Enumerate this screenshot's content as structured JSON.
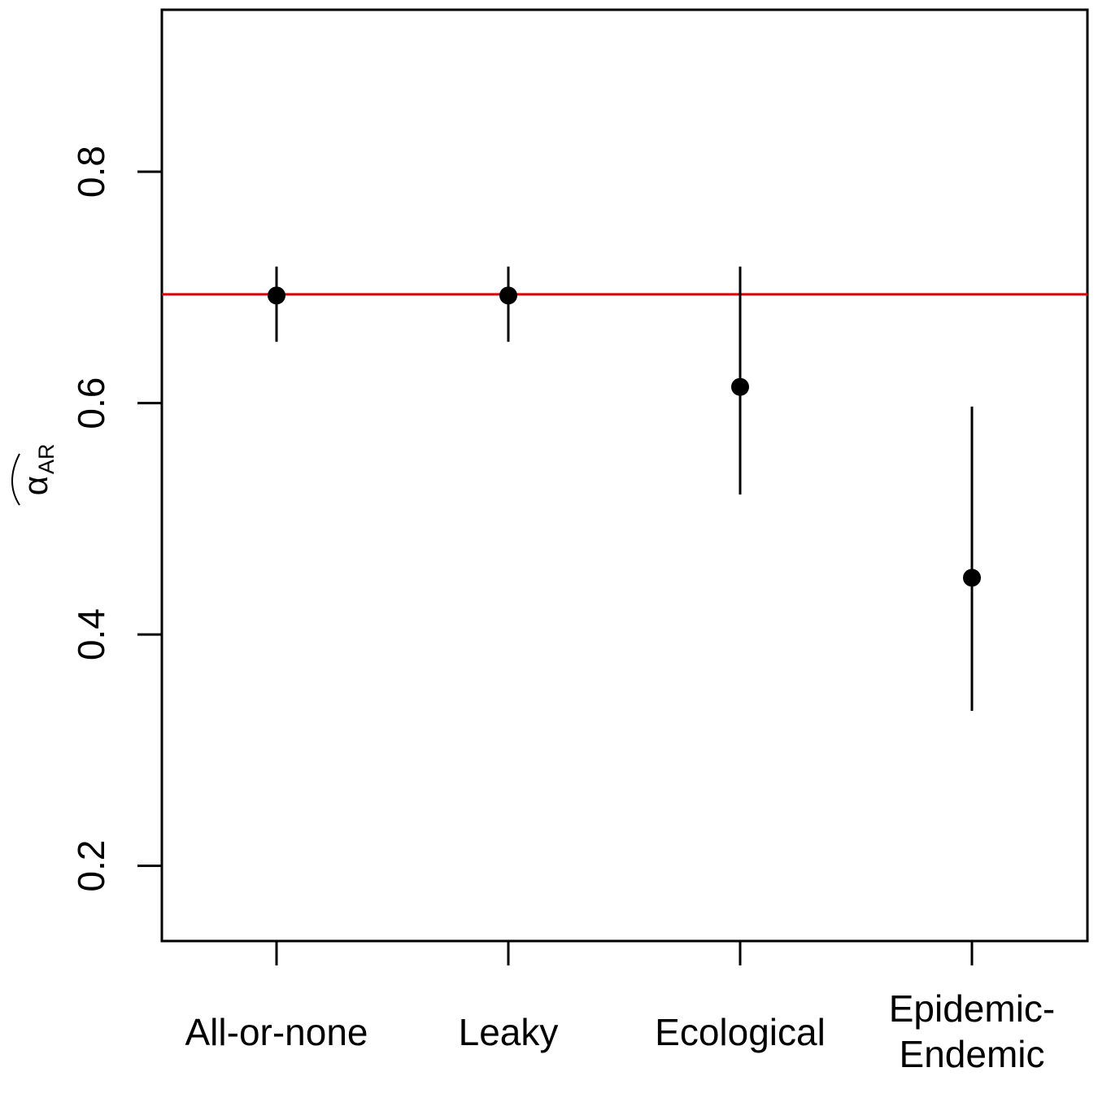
{
  "chart_data": {
    "type": "scatter",
    "title": "",
    "xlabel": "",
    "ylabel": {
      "symbol": "α",
      "subscript": "AR"
    },
    "ylim": [
      0.135,
      0.94
    ],
    "y_ticks": [
      0.2,
      0.4,
      0.6,
      0.8
    ],
    "y_tick_labels": [
      "0.2",
      "0.4",
      "0.6",
      "0.8"
    ],
    "categories": [
      {
        "lines": [
          "All-or-none"
        ]
      },
      {
        "lines": [
          "Leaky"
        ]
      },
      {
        "lines": [
          "Ecological"
        ]
      },
      {
        "lines": [
          "Epidemic-",
          "Endemic"
        ]
      }
    ],
    "points": [
      {
        "y": 0.693,
        "lower": 0.653,
        "upper": 0.718
      },
      {
        "y": 0.693,
        "lower": 0.653,
        "upper": 0.718
      },
      {
        "y": 0.614,
        "lower": 0.521,
        "upper": 0.718
      },
      {
        "y": 0.449,
        "lower": 0.334,
        "upper": 0.597
      }
    ],
    "reference_line": {
      "y": 0.694,
      "color": "#e00000"
    },
    "point_color": "#000000",
    "grid": false,
    "legend": "none"
  }
}
